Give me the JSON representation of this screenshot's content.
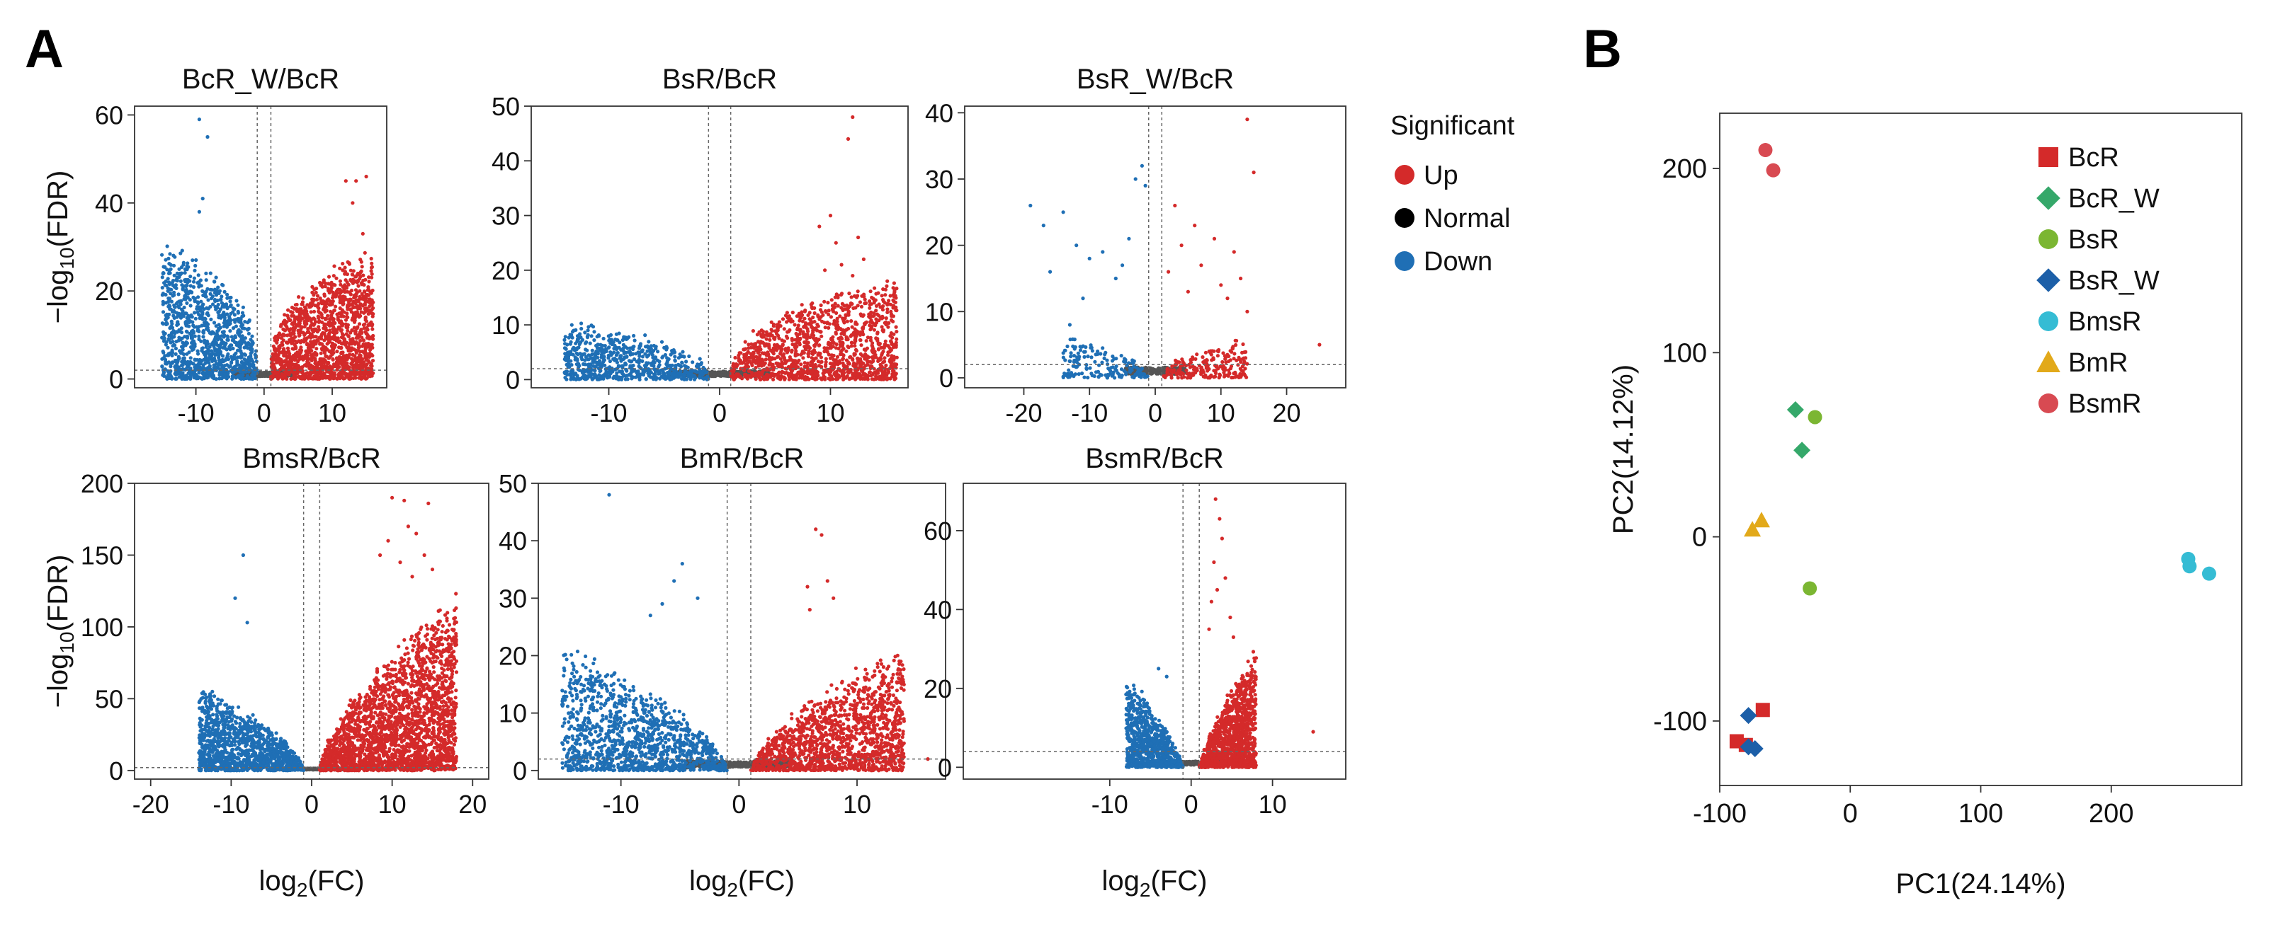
{
  "panel_labels": {
    "a": "A",
    "b": "B"
  },
  "colors": {
    "up": "#d42a2a",
    "normal": "#555555",
    "down": "#1f6fb5",
    "guide": "#666666"
  },
  "volcano": {
    "x_label": "log2(FC)",
    "y_label": "−log10(FDR)",
    "legend": {
      "title": "Significant",
      "items": [
        {
          "label": "Up",
          "color": "#d42a2a"
        },
        {
          "label": "Normal",
          "color": "#000000"
        },
        {
          "label": "Down",
          "color": "#1f6fb5"
        }
      ]
    }
  },
  "chart_data": [
    {
      "type": "scatter",
      "title": "BcR_W/BcR",
      "xlabel": "",
      "ylabel": "−log10(FDR)",
      "xlim": [
        -19,
        18
      ],
      "ylim": [
        -2,
        62
      ],
      "xticks": [
        -10,
        0,
        10
      ],
      "yticks": [
        0,
        20,
        40,
        60
      ],
      "fc_threshold": 1,
      "fdr_line": 2,
      "envelope": {
        "down_xmin": -15,
        "up_xmax": 16,
        "down_peak": 28,
        "up_peak": 27,
        "steep": 3.0
      },
      "density": {
        "up": 1500,
        "down": 1100,
        "normal": 500
      },
      "outliers": [
        [
          -9.5,
          59
        ],
        [
          -8.3,
          55
        ],
        [
          -9,
          41
        ],
        [
          -9.5,
          38
        ],
        [
          12,
          45
        ],
        [
          13.5,
          45
        ],
        [
          15,
          46
        ],
        [
          13,
          40
        ],
        [
          -10.5,
          27
        ],
        [
          14.5,
          33
        ]
      ]
    },
    {
      "type": "scatter",
      "title": "BsR/BcR",
      "xlabel": "",
      "ylabel": "",
      "xlim": [
        -17,
        17
      ],
      "ylim": [
        -1.5,
        50
      ],
      "xticks": [
        -10,
        0,
        10
      ],
      "yticks": [
        0,
        10,
        20,
        30,
        40,
        50
      ],
      "fc_threshold": 1,
      "fdr_line": 2,
      "envelope": {
        "down_xmin": -14,
        "up_xmax": 16,
        "down_peak": 10,
        "up_peak": 17,
        "steep": 2.6
      },
      "density": {
        "up": 1300,
        "down": 700,
        "normal": 400
      },
      "outliers": [
        [
          12,
          48
        ],
        [
          11.6,
          44
        ],
        [
          10,
          30
        ],
        [
          9,
          28
        ],
        [
          12.5,
          26
        ],
        [
          10.5,
          25
        ],
        [
          13,
          22
        ],
        [
          11,
          21
        ],
        [
          9.5,
          20
        ],
        [
          12,
          19
        ]
      ]
    },
    {
      "type": "scatter",
      "title": "BsR_W/BcR",
      "xlabel": "",
      "ylabel": "",
      "xlim": [
        -29,
        29
      ],
      "ylim": [
        -1.5,
        41
      ],
      "xticks": [
        -20,
        -10,
        0,
        10,
        20
      ],
      "yticks": [
        0,
        10,
        20,
        30,
        40
      ],
      "fc_threshold": 1,
      "fdr_line": 2,
      "envelope": {
        "down_xmin": -14,
        "up_xmax": 14,
        "down_peak": 6,
        "up_peak": 6,
        "steep": 2.0
      },
      "density": {
        "up": 220,
        "down": 170,
        "normal": 350
      },
      "outliers": [
        [
          14,
          39
        ],
        [
          -2,
          32
        ],
        [
          -3,
          30
        ],
        [
          -1.5,
          29
        ],
        [
          15,
          31
        ],
        [
          -19,
          26
        ],
        [
          -17,
          23
        ],
        [
          -14,
          25
        ],
        [
          -12,
          20
        ],
        [
          -10,
          18
        ],
        [
          -8,
          19
        ],
        [
          -5,
          17
        ],
        [
          -4,
          21
        ],
        [
          -16,
          16
        ],
        [
          3,
          26
        ],
        [
          6,
          23
        ],
        [
          9,
          21
        ],
        [
          12,
          19
        ],
        [
          4,
          20
        ],
        [
          7,
          17
        ],
        [
          13,
          15
        ],
        [
          10,
          14
        ],
        [
          25,
          5
        ],
        [
          -6,
          15
        ],
        [
          -11,
          12
        ],
        [
          2,
          16
        ],
        [
          5,
          13
        ],
        [
          11,
          12
        ],
        [
          -13,
          8
        ],
        [
          14,
          10
        ]
      ]
    },
    {
      "type": "scatter",
      "title": "BmsR/BcR",
      "xlabel": "log2(FC)",
      "ylabel": "−log10(FDR)",
      "xlim": [
        -22,
        22
      ],
      "ylim": [
        -6,
        200
      ],
      "xticks": [
        -20,
        -10,
        0,
        10,
        20
      ],
      "yticks": [
        0,
        50,
        100,
        150,
        200
      ],
      "fc_threshold": 1,
      "fdr_line": 2,
      "envelope": {
        "down_xmin": -14,
        "up_xmax": 18,
        "down_peak": 55,
        "up_peak": 110,
        "steep": 1.6
      },
      "density": {
        "up": 2300,
        "down": 1200,
        "normal": 400
      },
      "outliers": [
        [
          -8.5,
          150
        ],
        [
          -9.5,
          120
        ],
        [
          -8,
          103
        ],
        [
          10,
          190
        ],
        [
          11.5,
          188
        ],
        [
          14.5,
          186
        ],
        [
          12,
          170
        ],
        [
          13,
          165
        ],
        [
          9.5,
          160
        ],
        [
          14,
          150
        ],
        [
          11,
          145
        ],
        [
          8.5,
          150
        ],
        [
          15,
          140
        ],
        [
          12.5,
          135
        ]
      ]
    },
    {
      "type": "scatter",
      "title": "BmR/BcR",
      "xlabel": "log2(FC)",
      "ylabel": "",
      "xlim": [
        -17,
        17.5
      ],
      "ylim": [
        -1.5,
        50
      ],
      "xticks": [
        -10,
        0,
        10
      ],
      "yticks": [
        0,
        10,
        20,
        30,
        40,
        50
      ],
      "fc_threshold": 1,
      "fdr_line": 2,
      "envelope": {
        "down_xmin": -15,
        "up_xmax": 14,
        "down_peak": 20,
        "up_peak": 20,
        "steep": 1.6
      },
      "density": {
        "up": 1400,
        "down": 1200,
        "normal": 450
      },
      "outliers": [
        [
          -11,
          48
        ],
        [
          6.5,
          42
        ],
        [
          7,
          41
        ],
        [
          -4.8,
          36
        ],
        [
          7.5,
          33
        ],
        [
          5.8,
          32
        ],
        [
          8,
          30
        ],
        [
          -6.5,
          29
        ],
        [
          -7.5,
          27
        ],
        [
          6,
          28
        ],
        [
          16,
          2
        ],
        [
          -3.5,
          30
        ],
        [
          -5.5,
          33
        ]
      ]
    },
    {
      "type": "scatter",
      "title": "BsmR/BcR",
      "xlabel": "log2(FC)",
      "ylabel": "",
      "xlim": [
        -28,
        19
      ],
      "ylim": [
        -3,
        72
      ],
      "xticks": [
        -10,
        0,
        10
      ],
      "yticks": [
        0,
        20,
        40,
        60
      ],
      "fc_threshold": 1,
      "fdr_line": 4,
      "envelope": {
        "down_xmin": -8,
        "up_xmax": 8,
        "down_peak": 22,
        "up_peak": 28,
        "steep": 1.3
      },
      "density": {
        "up": 1100,
        "down": 800,
        "normal": 300
      },
      "outliers": [
        [
          3,
          68
        ],
        [
          3.5,
          63
        ],
        [
          3.8,
          58
        ],
        [
          2.8,
          52
        ],
        [
          4.2,
          48
        ],
        [
          3.2,
          45
        ],
        [
          2.5,
          42
        ],
        [
          4.8,
          38
        ],
        [
          2.2,
          35
        ],
        [
          5.2,
          33
        ],
        [
          15,
          9
        ],
        [
          -4,
          25
        ],
        [
          -3,
          23
        ]
      ]
    },
    {
      "type": "scatter",
      "title": "",
      "xlabel": "PC1(24.14%)",
      "ylabel": "PC2(14.12%)",
      "xlim": [
        -100,
        300
      ],
      "ylim": [
        -135,
        230
      ],
      "xticks": [
        -100,
        0,
        100,
        200
      ],
      "yticks": [
        -100,
        0,
        100,
        200
      ],
      "series": [
        {
          "name": "BcR",
          "marker": "square",
          "color": "#d42a2a",
          "points": [
            [
              -67,
              -94
            ],
            [
              -87,
              -111
            ],
            [
              -80,
              -113
            ]
          ]
        },
        {
          "name": "BcR_W",
          "marker": "diamond",
          "color": "#35a86a",
          "points": [
            [
              -42,
              69
            ],
            [
              -37,
              47
            ]
          ]
        },
        {
          "name": "BsR",
          "marker": "circle",
          "color": "#7bb632",
          "points": [
            [
              -27,
              65
            ],
            [
              -31,
              -28
            ]
          ]
        },
        {
          "name": "BsR_W",
          "marker": "diamond",
          "color": "#1c5fa8",
          "points": [
            [
              -78,
              -97
            ],
            [
              -78,
              -114
            ],
            [
              -73,
              -115
            ]
          ]
        },
        {
          "name": "BmsR",
          "marker": "circle",
          "color": "#35bcd4",
          "points": [
            [
              259,
              -12
            ],
            [
              260,
              -16
            ],
            [
              275,
              -20
            ]
          ]
        },
        {
          "name": "BmR",
          "marker": "triangle",
          "color": "#e2a91a",
          "points": [
            [
              -75,
              4
            ],
            [
              -68,
              9
            ]
          ]
        },
        {
          "name": "BsmR",
          "marker": "circle",
          "color": "#d84a52",
          "points": [
            [
              -65,
              210
            ],
            [
              -59,
              199
            ]
          ]
        }
      ],
      "legend": "top-right"
    }
  ]
}
